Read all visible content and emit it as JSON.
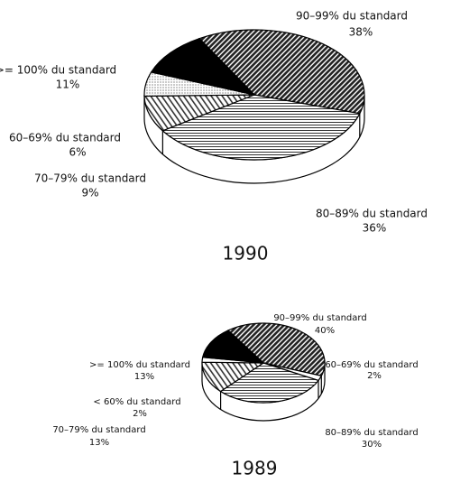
{
  "chart_data": [
    {
      "type": "pie3d",
      "title": "1990",
      "categories": [
        "90–99% du standard",
        "80–89% du standard",
        "70–79% du standard",
        "60–69% du standard",
        ">= 100% du standard"
      ],
      "values": [
        38,
        36,
        9,
        6,
        11
      ],
      "value_labels": [
        "38%",
        "36%",
        "9%",
        "6%",
        "11%"
      ]
    },
    {
      "type": "pie3d",
      "title": "1989",
      "categories": [
        "90–99% du standard",
        "60–69% du standard",
        "80–89% du standard",
        "70–79% du standard",
        "< 60% du standard",
        ">= 100% du standard"
      ],
      "values": [
        40,
        2,
        30,
        13,
        2,
        13
      ],
      "value_labels": [
        "40%",
        "2%",
        "30%",
        "13%",
        "2%",
        "13%"
      ]
    }
  ]
}
